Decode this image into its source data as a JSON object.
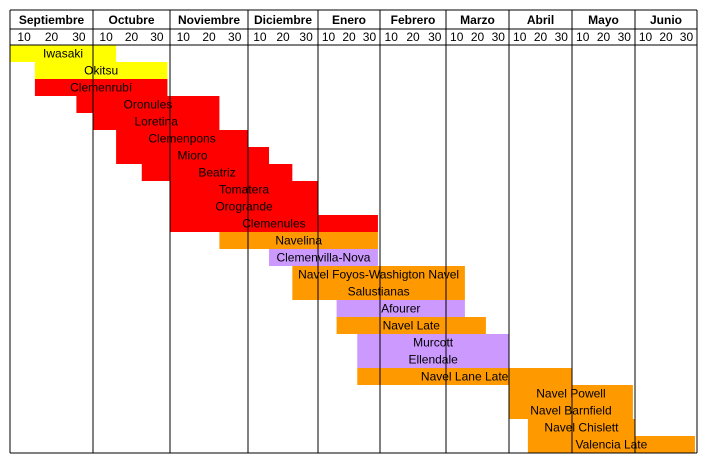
{
  "chart_data": {
    "type": "gantt",
    "months": [
      "Septiembre",
      "Octubre",
      "Noviembre",
      "Diciembre",
      "Enero",
      "Febrero",
      "Marzo",
      "Abril",
      "Mayo",
      "Junio"
    ],
    "subticks": [
      "10",
      "20",
      "30"
    ],
    "colors": {
      "yellow": "#ffff00",
      "red": "#ff0000",
      "orange": "#ff9900",
      "purple": "#cc99ff"
    },
    "bars": [
      {
        "name": "Iwasaki",
        "start": "Sep 1",
        "end": "Oct 10",
        "color": "#ffff00"
      },
      {
        "name": "Okitsu",
        "start": "Sep 10",
        "end": "Oct 30",
        "color": "#ffff00"
      },
      {
        "name": "Clemenrubí",
        "start": "Sep 10",
        "end": "Oct 30",
        "color": "#ff0000"
      },
      {
        "name": "Oronules",
        "start": "Sep 25",
        "end": "Nov 20",
        "color": "#ff0000"
      },
      {
        "name": "Loretina",
        "start": "Oct 1",
        "end": "Nov 20",
        "color": "#ff0000"
      },
      {
        "name": "Clemenpons",
        "start": "Oct 10",
        "end": "Dec 1",
        "color": "#ff0000"
      },
      {
        "name": "Mioro",
        "start": "Oct 10",
        "end": "Dec 10",
        "color": "#ff0000"
      },
      {
        "name": "Beatriz",
        "start": "Oct 20",
        "end": "Dec 20",
        "color": "#ff0000"
      },
      {
        "name": "Tomatera",
        "start": "Nov 1",
        "end": "Jan 1",
        "color": "#ff0000"
      },
      {
        "name": "Orogrande",
        "start": "Nov 1",
        "end": "Jan 1",
        "color": "#ff0000"
      },
      {
        "name": "Clemenules",
        "start": "Nov 1",
        "end": "Jan 30",
        "color": "#ff0000"
      },
      {
        "name": "Navelina",
        "start": "Nov 20",
        "end": "Jan 30",
        "color": "#ff9900"
      },
      {
        "name": "Clemenvilla-Nova",
        "start": "Dec 10",
        "end": "Jan 30",
        "color": "#cc99ff"
      },
      {
        "name": "Navel Foyos-Washigton Navel",
        "start": "Dec 20",
        "end": "Mar 10",
        "color": "#ff9900"
      },
      {
        "name": "Salustianas",
        "start": "Dec 20",
        "end": "Mar 10",
        "color": "#ff9900"
      },
      {
        "name": "Afourer",
        "start": "Jan 10",
        "end": "Mar 10",
        "color": "#cc99ff"
      },
      {
        "name": "Navel Late",
        "start": "Jan 10",
        "end": "Mar 20",
        "color": "#ff9900"
      },
      {
        "name": "Murcott",
        "start": "Jan 20",
        "end": "Apr 1",
        "color": "#cc99ff"
      },
      {
        "name": "Ellendale",
        "start": "Jan 20",
        "end": "Apr 1",
        "color": "#cc99ff"
      },
      {
        "name": "Navel Lane Late",
        "start": "Jan 20",
        "end": "May 1",
        "color": "#ff9900"
      },
      {
        "name": "Navel Powell",
        "start": "Apr 1",
        "end": "May 30",
        "color": "#ff9900"
      },
      {
        "name": "Navel Barnfield",
        "start": "Apr 1",
        "end": "May 30",
        "color": "#ff9900"
      },
      {
        "name": "Navel Chislett",
        "start": "Apr 10",
        "end": "Jun 1",
        "color": "#ff9900"
      },
      {
        "name": "Valencia Late",
        "start": "Apr 10",
        "end": "Jun 30",
        "color": "#ff9900"
      }
    ]
  }
}
